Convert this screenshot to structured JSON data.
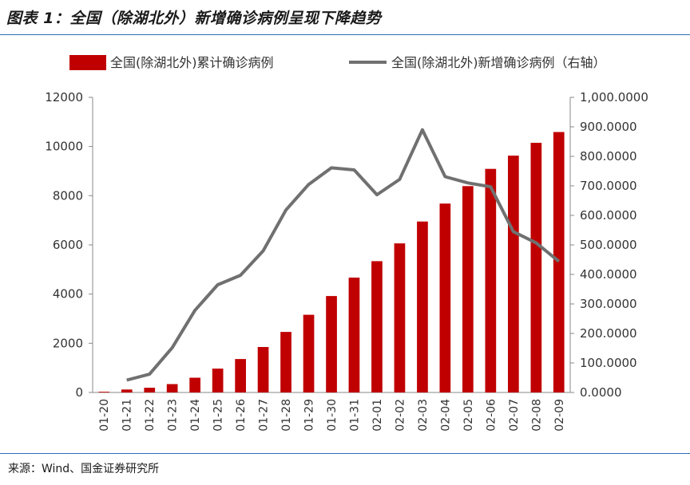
{
  "title": "图表 1：全国（除湖北外）新增确诊病例呈现下降趋势",
  "source": "来源：Wind、国金证券研究所",
  "chart_data": {
    "type": "bar+line",
    "categories": [
      "01-20",
      "01-21",
      "01-22",
      "01-23",
      "01-24",
      "01-25",
      "01-26",
      "01-27",
      "01-28",
      "01-29",
      "01-30",
      "01-31",
      "02-01",
      "02-02",
      "02-03",
      "02-04",
      "02-05",
      "02-06",
      "02-07",
      "02-08",
      "02-09"
    ],
    "series": [
      {
        "name": "全国(除湖北外)累计确诊病例",
        "type": "bar",
        "axis": "left",
        "color": "#c00000",
        "values": [
          30,
          120,
          190,
          340,
          600,
          970,
          1360,
          1850,
          2460,
          3160,
          3920,
          4670,
          5340,
          6060,
          6950,
          7680,
          8390,
          9090,
          9630,
          10150,
          10590
        ]
      },
      {
        "name": "全国(除湖北外)新增确诊病例（右轴）",
        "type": "line",
        "axis": "right",
        "color": "#707070",
        "values": [
          null,
          42,
          62,
          152,
          278,
          365,
          397,
          480,
          618,
          705,
          761,
          754,
          670,
          722,
          890,
          731,
          710,
          697,
          545,
          507,
          444
        ]
      }
    ],
    "left_axis": {
      "ylim": [
        0,
        12000
      ],
      "ticks": [
        "0",
        "2000",
        "4000",
        "6000",
        "8000",
        "10000",
        "12000"
      ]
    },
    "right_axis": {
      "ylim": [
        0,
        1000
      ],
      "ticks": [
        "0.0000",
        "100.0000",
        "200.0000",
        "300.0000",
        "400.0000",
        "500.0000",
        "600.0000",
        "700.0000",
        "800.0000",
        "900.0000",
        "1,000.0000"
      ]
    },
    "legend_position": "top",
    "grid": false
  }
}
